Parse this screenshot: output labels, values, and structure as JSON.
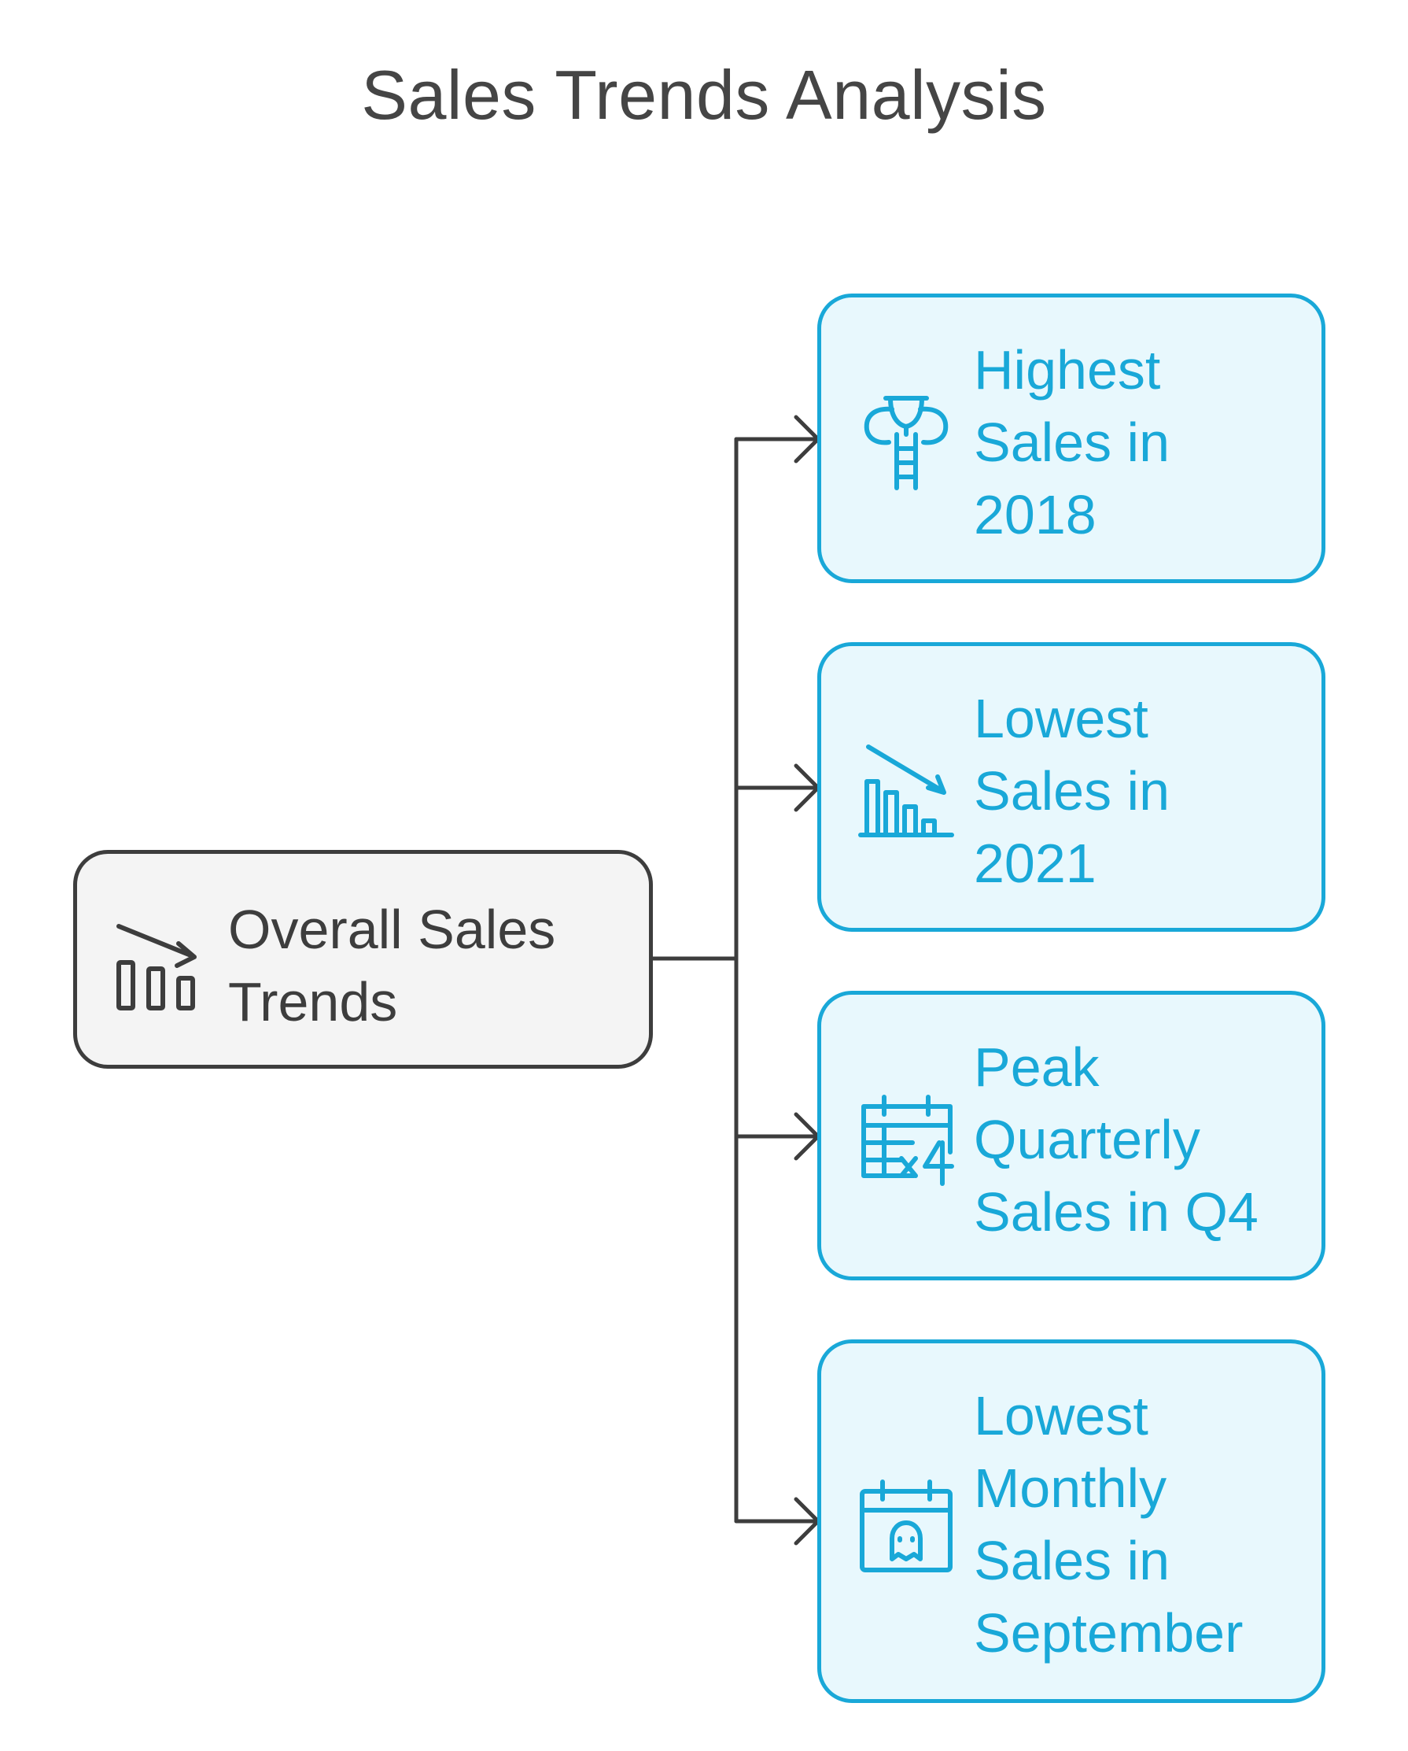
{
  "diagram": {
    "title": "Sales Trends Analysis",
    "root": {
      "label_line1": "Overall Sales",
      "label_line2": "Trends",
      "icon": "declining-bar-chart-icon"
    },
    "children": [
      {
        "label_line1": "Highest",
        "label_line2": "Sales in",
        "label_line3": "2018",
        "icon": "trophy-ladder-icon"
      },
      {
        "label_line1": "Lowest",
        "label_line2": "Sales in",
        "label_line3": "2021",
        "icon": "declining-bar-chart-icon"
      },
      {
        "label_line1": "Peak",
        "label_line2": "Quarterly",
        "label_line3": "Sales in Q4",
        "icon": "calendar-times-four-icon"
      },
      {
        "label_line1": "Lowest",
        "label_line2": "Monthly",
        "label_line3": "Sales in",
        "label_line4": "September",
        "icon": "calendar-ghost-icon"
      }
    ],
    "colors": {
      "root_border": "#3d3d3d",
      "root_fill": "#f4f4f4",
      "child_border": "#19a8d8",
      "child_fill": "#e8f8fd",
      "connector": "#3d3d3d"
    }
  }
}
